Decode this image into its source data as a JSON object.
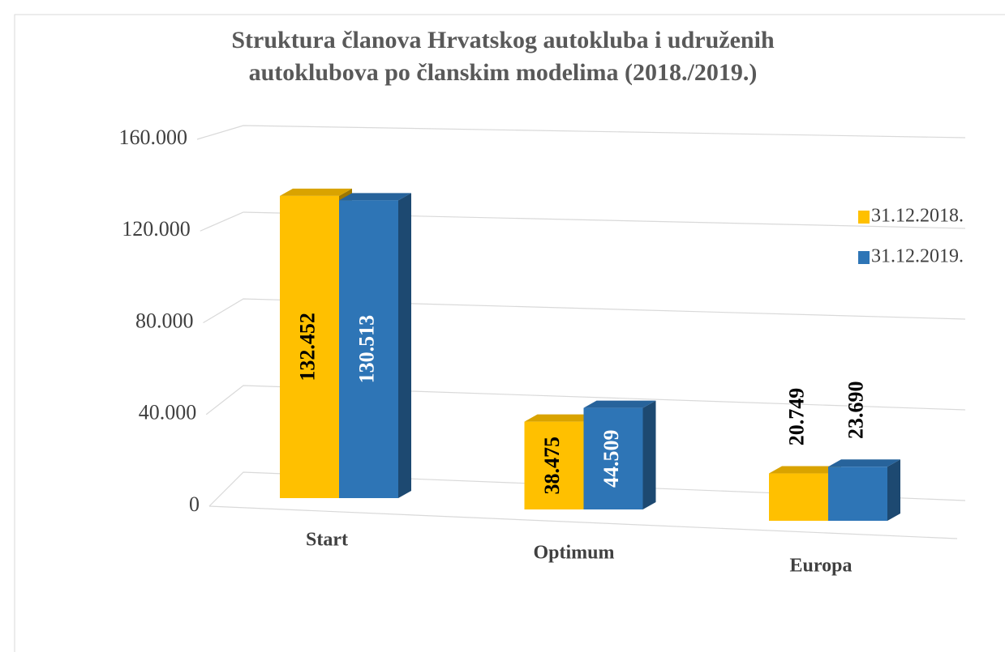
{
  "chart_data": {
    "type": "bar3d",
    "title": "Struktura članova Hrvatskog autokluba i udruženih autoklubova po članskim modelima (2018./2019.)",
    "categories": [
      "Start",
      "Optimum",
      "Europa"
    ],
    "series": [
      {
        "name": "31.12.2018.",
        "color": "#FFC000",
        "values": [
          132452,
          38475,
          20749
        ],
        "value_labels": [
          "132.452",
          "38.475",
          "20.749"
        ]
      },
      {
        "name": "31.12.2019.",
        "color": "#2E75B6",
        "values": [
          130513,
          44509,
          23690
        ],
        "value_labels": [
          "130.513",
          "44.509",
          "23.690"
        ]
      }
    ],
    "ylim": [
      0,
      160000
    ],
    "yticks": [
      0,
      {
        "value": 40000,
        "label": "40.000"
      },
      {
        "value": 80000,
        "label": "80.000"
      },
      {
        "value": 120000,
        "label": "120.000"
      },
      {
        "value": 160000,
        "label": "160.000"
      }
    ],
    "grid": true,
    "legend": "right"
  }
}
